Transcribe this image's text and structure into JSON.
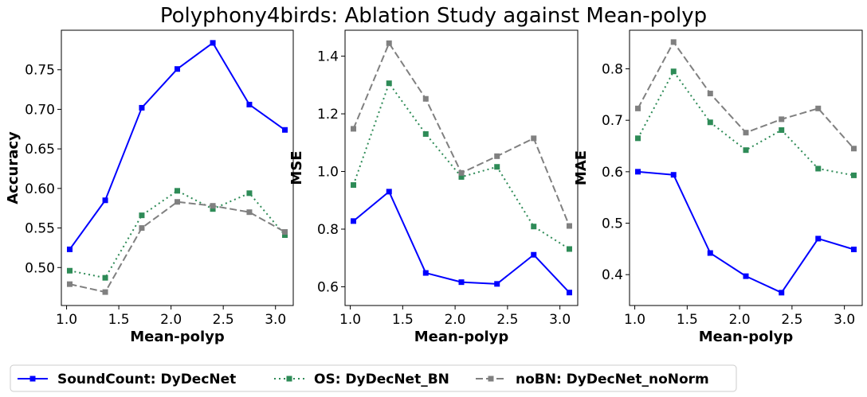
{
  "title": "Polyphony4birds: Ablation Study against Mean-polyp",
  "colors": {
    "SoundCount: DyDecNet": "#0000ff",
    "OS: DyDecNet_BN": "#2e8b57",
    "noBN: DyDecNet_noNorm": "#808080"
  },
  "legend": {
    "placement": "bottom-center",
    "entries": [
      "SoundCount: DyDecNet",
      "OS: DyDecNet_BN",
      "noBN: DyDecNet_noNorm"
    ]
  },
  "chart_data": [
    {
      "type": "line",
      "xlabel": "Mean-polyp",
      "ylabel": "Accuracy",
      "x": [
        1.03,
        1.37,
        1.72,
        2.06,
        2.4,
        2.75,
        3.09
      ],
      "xlim": [
        0.95,
        3.17
      ],
      "ylim": [
        0.452,
        0.8
      ],
      "xticks": [
        1.0,
        1.5,
        2.0,
        2.5,
        3.0
      ],
      "xtick_labels": [
        "1.0",
        "1.5",
        "2.0",
        "2.5",
        "3.0"
      ],
      "yticks": [
        0.5,
        0.55,
        0.6,
        0.65,
        0.7,
        0.75
      ],
      "ytick_labels": [
        "0.50",
        "0.55",
        "0.60",
        "0.65",
        "0.70",
        "0.75"
      ],
      "series": [
        {
          "name": "SoundCount: DyDecNet",
          "style": "solid",
          "values": [
            0.523,
            0.585,
            0.702,
            0.751,
            0.784,
            0.706,
            0.674
          ]
        },
        {
          "name": "OS: DyDecNet_BN",
          "style": "dotted",
          "values": [
            0.496,
            0.487,
            0.566,
            0.597,
            0.574,
            0.594,
            0.541
          ]
        },
        {
          "name": "noBN: DyDecNet_noNorm",
          "style": "dashed",
          "values": [
            0.479,
            0.469,
            0.55,
            0.583,
            0.578,
            0.57,
            0.545
          ]
        }
      ]
    },
    {
      "type": "line",
      "xlabel": "Mean-polyp",
      "ylabel": "MSE",
      "x": [
        1.03,
        1.37,
        1.72,
        2.06,
        2.4,
        2.75,
        3.09
      ],
      "xlim": [
        0.95,
        3.17
      ],
      "ylim": [
        0.535,
        1.49
      ],
      "xticks": [
        1.0,
        1.5,
        2.0,
        2.5,
        3.0
      ],
      "xtick_labels": [
        "1.0",
        "1.5",
        "2.0",
        "2.5",
        "3.0"
      ],
      "yticks": [
        0.6,
        0.8,
        1.0,
        1.2,
        1.4
      ],
      "ytick_labels": [
        "0.6",
        "0.8",
        "1.0",
        "1.2",
        "1.4"
      ],
      "series": [
        {
          "name": "SoundCount: DyDecNet",
          "style": "solid",
          "values": [
            0.828,
            0.93,
            0.648,
            0.616,
            0.61,
            0.711,
            0.58
          ]
        },
        {
          "name": "OS: DyDecNet_BN",
          "style": "dotted",
          "values": [
            0.953,
            1.306,
            1.13,
            0.981,
            1.016,
            0.809,
            0.731
          ]
        },
        {
          "name": "noBN: DyDecNet_noNorm",
          "style": "dashed",
          "values": [
            1.148,
            1.445,
            1.252,
            0.995,
            1.053,
            1.115,
            0.811
          ]
        }
      ]
    },
    {
      "type": "line",
      "xlabel": "Mean-polyp",
      "ylabel": "MAE",
      "x": [
        1.03,
        1.37,
        1.72,
        2.06,
        2.4,
        2.75,
        3.09
      ],
      "xlim": [
        0.95,
        3.17
      ],
      "ylim": [
        0.34,
        0.875
      ],
      "xticks": [
        1.0,
        1.5,
        2.0,
        2.5,
        3.0
      ],
      "xtick_labels": [
        "1.0",
        "1.5",
        "2.0",
        "2.5",
        "3.0"
      ],
      "yticks": [
        0.4,
        0.5,
        0.6,
        0.7,
        0.8
      ],
      "ytick_labels": [
        "0.4",
        "0.5",
        "0.6",
        "0.7",
        "0.8"
      ],
      "series": [
        {
          "name": "SoundCount: DyDecNet",
          "style": "solid",
          "values": [
            0.6,
            0.594,
            0.442,
            0.397,
            0.365,
            0.47,
            0.449
          ]
        },
        {
          "name": "OS: DyDecNet_BN",
          "style": "dotted",
          "values": [
            0.665,
            0.795,
            0.696,
            0.642,
            0.681,
            0.606,
            0.593
          ]
        },
        {
          "name": "noBN: DyDecNet_noNorm",
          "style": "dashed",
          "values": [
            0.723,
            0.852,
            0.752,
            0.676,
            0.702,
            0.723,
            0.645
          ]
        }
      ]
    }
  ]
}
